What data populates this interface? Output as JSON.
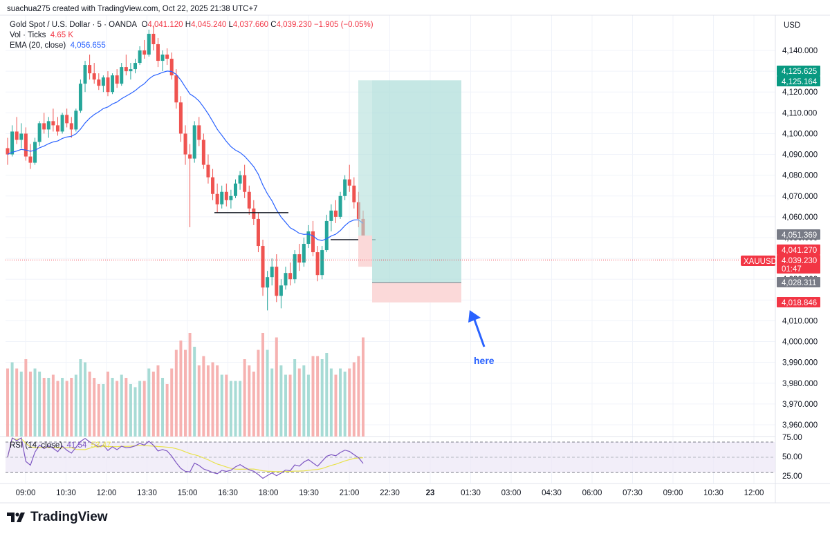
{
  "header": {
    "attribution": "suachua275 created with TradingView.com, Oct 22, 2025 21:38 UTC+7",
    "symbol": "Gold Spot / U.S. Dollar · 5 · OANDA",
    "ohlc": {
      "o_label": "O",
      "o": "4,041.120",
      "h_label": "H",
      "h": "4,045.240",
      "l_label": "L",
      "l": "4,037.660",
      "c_label": "C",
      "c": "4,039.230",
      "chg": "−1.905 (−0.05%)"
    },
    "vol_label": "Vol · Ticks",
    "vol_value": "4.65 K",
    "ema_label": "EMA (20, close)",
    "ema_value": "4,056.655"
  },
  "currency": "USD",
  "rsi": {
    "label": "RSI (14, close)",
    "value": "41.54",
    "ma_value": "53.47"
  },
  "annotation": "here",
  "brand": "TradingView",
  "colors": {
    "up": "#26a69a",
    "down": "#ef5350",
    "ema": "#2962ff",
    "rsi": "#7e57c2",
    "rsi_ma": "#e8e24a",
    "profit_zone": "#b2dfdb",
    "loss_zone": "#fbd9d9",
    "annotation": "#2962ff"
  },
  "chart_data": {
    "type": "candlestick",
    "symbol": "XAUUSD",
    "ylim": [
      3952,
      4150
    ],
    "y_ticks": [
      "4,140.000",
      "4,130.000",
      "4,120.000",
      "4,110.000",
      "4,100.000",
      "4,090.000",
      "4,080.000",
      "4,070.000",
      "4,060.000",
      "4,050.000",
      "4,040.000",
      "4,030.000",
      "4,020.000",
      "4,010.000",
      "4,000.000",
      "3,990.000",
      "3,980.000",
      "3,970.000",
      "3,960.000"
    ],
    "x_ticks": [
      "09:00",
      "10:30",
      "12:00",
      "13:30",
      "15:00",
      "16:30",
      "18:00",
      "19:30",
      "21:00",
      "22:30",
      "23",
      "01:30",
      "03:00",
      "04:30",
      "06:00",
      "07:30",
      "09:00",
      "10:30",
      "12:00"
    ],
    "price_labels": [
      {
        "text": "4,125.625",
        "price": 4125.625,
        "color": "#089981"
      },
      {
        "text": "4,125.164",
        "price": 4125.164,
        "color": "#089981"
      },
      {
        "text": "4,051.369",
        "price": 4051.369,
        "color": "#787b86"
      },
      {
        "text": "4,041.270",
        "price": 4041.27,
        "color": "#f23645"
      },
      {
        "text": "4,039.230",
        "price": 4039.23,
        "color": "#f23645"
      },
      {
        "text": "01:47",
        "price": 4035.0,
        "color": "#f23645"
      },
      {
        "text": "4,028.311",
        "price": 4028.311,
        "color": "#787b86"
      },
      {
        "text": "4,018.846",
        "price": 4018.846,
        "color": "#f23645"
      }
    ],
    "symbol_tag": "XAUUSD",
    "current_price": 4039.23,
    "position": {
      "entry": 4028.311,
      "target": 4125.625,
      "stop": 4018.846
    },
    "levels": [
      {
        "price": 4062,
        "from": "16:15",
        "to": "18:45"
      },
      {
        "price": 4049,
        "from": "20:30",
        "to": "22:00"
      }
    ],
    "ohlc_series": [
      [
        4093,
        4098,
        4085,
        4090
      ],
      [
        4090,
        4104,
        4089,
        4101
      ],
      [
        4101,
        4108,
        4095,
        4097
      ],
      [
        4097,
        4105,
        4093,
        4100
      ],
      [
        4100,
        4103,
        4087,
        4089
      ],
      [
        4089,
        4095,
        4083,
        4086
      ],
      [
        4086,
        4098,
        4085,
        4096
      ],
      [
        4096,
        4106,
        4094,
        4105
      ],
      [
        4105,
        4110,
        4100,
        4102
      ],
      [
        4102,
        4108,
        4098,
        4106
      ],
      [
        4106,
        4112,
        4101,
        4104
      ],
      [
        4104,
        4108,
        4099,
        4101
      ],
      [
        4101,
        4110,
        4100,
        4109
      ],
      [
        4109,
        4112,
        4103,
        4105
      ],
      [
        4105,
        4108,
        4098,
        4102
      ],
      [
        4102,
        4112,
        4101,
        4111
      ],
      [
        4111,
        4126,
        4110,
        4124
      ],
      [
        4124,
        4135,
        4120,
        4133
      ],
      [
        4133,
        4138,
        4126,
        4129
      ],
      [
        4129,
        4134,
        4124,
        4126
      ],
      [
        4126,
        4129,
        4121,
        4123
      ],
      [
        4123,
        4128,
        4120,
        4127
      ],
      [
        4127,
        4130,
        4118,
        4120
      ],
      [
        4120,
        4129,
        4119,
        4128
      ],
      [
        4128,
        4131,
        4122,
        4124
      ],
      [
        4124,
        4134,
        4123,
        4132
      ],
      [
        4132,
        4138,
        4128,
        4130
      ],
      [
        4130,
        4134,
        4126,
        4131
      ],
      [
        4131,
        4136,
        4129,
        4134
      ],
      [
        4134,
        4142,
        4133,
        4140
      ],
      [
        4140,
        4145,
        4136,
        4138
      ],
      [
        4138,
        4150,
        4137,
        4148
      ],
      [
        4148,
        4152,
        4140,
        4143
      ],
      [
        4143,
        4146,
        4132,
        4135
      ],
      [
        4135,
        4140,
        4130,
        4138
      ],
      [
        4138,
        4141,
        4133,
        4136
      ],
      [
        4136,
        4139,
        4126,
        4128
      ],
      [
        4128,
        4131,
        4112,
        4115
      ],
      [
        4115,
        4118,
        4096,
        4100
      ],
      [
        4100,
        4104,
        4085,
        4090
      ],
      [
        4090,
        4095,
        4055,
        4088
      ],
      [
        4088,
        4106,
        4086,
        4104
      ],
      [
        4104,
        4108,
        4094,
        4097
      ],
      [
        4097,
        4100,
        4083,
        4085
      ],
      [
        4085,
        4090,
        4076,
        4079
      ],
      [
        4079,
        4083,
        4068,
        4071
      ],
      [
        4071,
        4076,
        4062,
        4066
      ],
      [
        4066,
        4075,
        4064,
        4072
      ],
      [
        4072,
        4076,
        4065,
        4068
      ],
      [
        4068,
        4073,
        4064,
        4070
      ],
      [
        4070,
        4078,
        4069,
        4076
      ],
      [
        4076,
        4082,
        4073,
        4080
      ],
      [
        4080,
        4085,
        4069,
        4072
      ],
      [
        4072,
        4075,
        4061,
        4064
      ],
      [
        4064,
        4068,
        4056,
        4059
      ],
      [
        4059,
        4062,
        4043,
        4046
      ],
      [
        4046,
        4049,
        4022,
        4026
      ],
      [
        4026,
        4034,
        4015,
        4031
      ],
      [
        4031,
        4040,
        4027,
        4036
      ],
      [
        4036,
        4042,
        4019,
        4022
      ],
      [
        4022,
        4030,
        4016,
        4027
      ],
      [
        4027,
        4036,
        4025,
        4033
      ],
      [
        4033,
        4038,
        4027,
        4030
      ],
      [
        4030,
        4044,
        4028,
        4042
      ],
      [
        4042,
        4047,
        4034,
        4038
      ],
      [
        4038,
        4050,
        4036,
        4047
      ],
      [
        4047,
        4056,
        4045,
        4053
      ],
      [
        4053,
        4058,
        4041,
        4043
      ],
      [
        4043,
        4046,
        4029,
        4032
      ],
      [
        4032,
        4046,
        4030,
        4044
      ],
      [
        4044,
        4061,
        4043,
        4058
      ],
      [
        4058,
        4066,
        4053,
        4063
      ],
      [
        4063,
        4068,
        4057,
        4060
      ],
      [
        4060,
        4072,
        4059,
        4070
      ],
      [
        4070,
        4080,
        4068,
        4078
      ],
      [
        4078,
        4085,
        4072,
        4075
      ],
      [
        4075,
        4079,
        4064,
        4067
      ],
      [
        4067,
        4072,
        4055,
        4059
      ],
      [
        4059,
        4063,
        4040,
        4041
      ]
    ],
    "volume_ticks": [],
    "rsi_series": []
  }
}
